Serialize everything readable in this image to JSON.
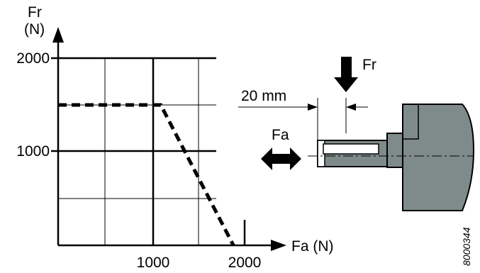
{
  "chart": {
    "y_axis_label_line1": "Fr",
    "y_axis_label_line2": "(N)",
    "x_axis_label": "Fa (N)",
    "y_ticks": [
      {
        "value": 1000,
        "label": "1000"
      },
      {
        "value": 2000,
        "label": "2000"
      }
    ],
    "x_ticks": [
      {
        "value": 1000,
        "label": "1000"
      },
      {
        "value": 2000,
        "label": "2000"
      }
    ],
    "ylim": [
      0,
      2000
    ],
    "xlim": [
      0,
      2000
    ],
    "limit_curve": [
      {
        "fa": 0,
        "fr": 1500
      },
      {
        "fa": 1100,
        "fr": 1500
      },
      {
        "fa": 1880,
        "fr": 0
      }
    ]
  },
  "shaft": {
    "radial_force_label": "Fr",
    "axial_force_label": "Fa",
    "distance_label": "20 mm"
  },
  "reference_code": "8000344",
  "colors": {
    "housing_fill": "#7f8b8b",
    "line": "#000000"
  }
}
